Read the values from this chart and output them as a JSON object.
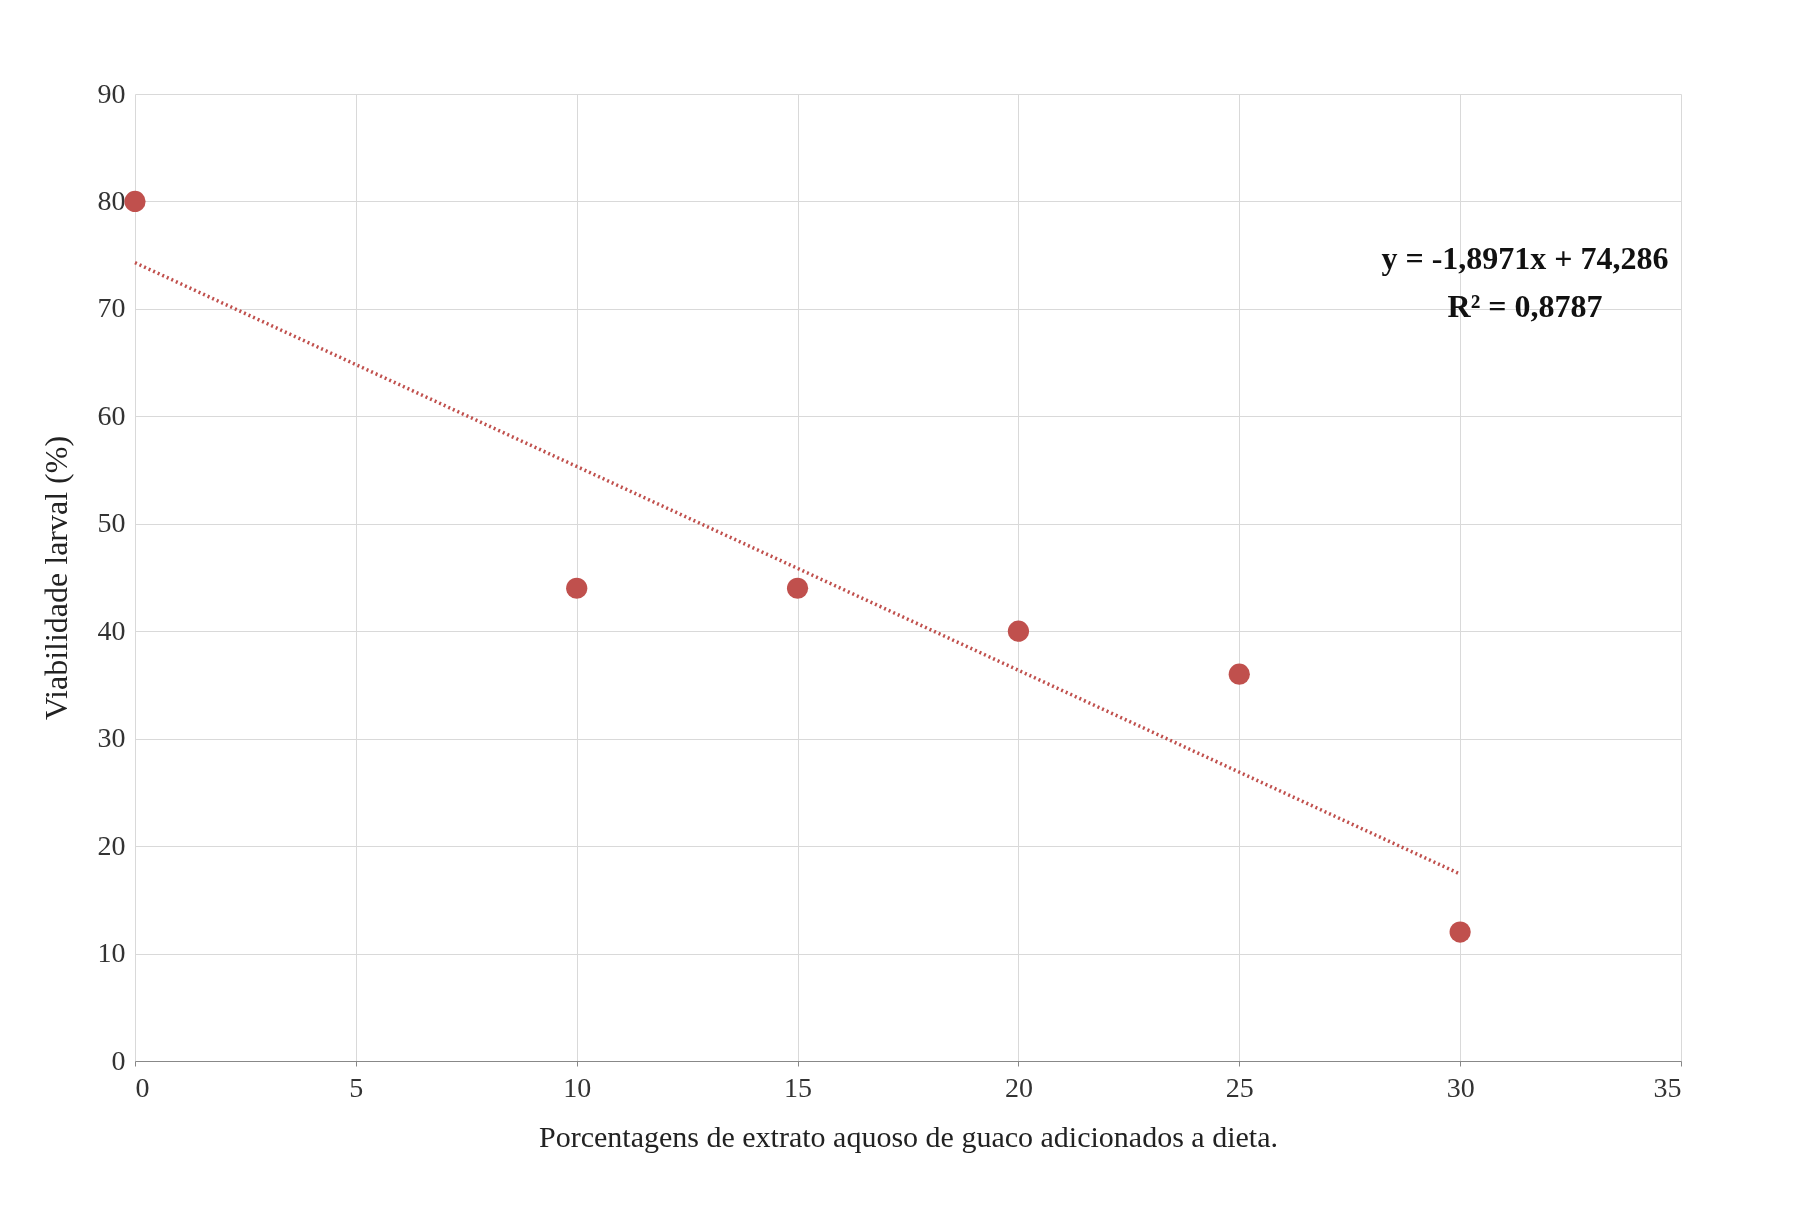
{
  "chart_data": {
    "type": "scatter",
    "xlabel": "Porcentagens de extrato aquoso de guaco adicionados a dieta.",
    "ylabel": "Viabilidade larval (%)",
    "x": [
      0,
      10,
      15,
      20,
      25,
      30
    ],
    "series": [
      {
        "color": "#c0504d",
        "values": [
          80,
          44,
          44,
          40,
          36,
          12
        ],
        "marker": "circle"
      },
      {
        "type": "line",
        "color": "#c0504d",
        "x": [
          0,
          30
        ],
        "values": [
          74.3,
          17.4
        ],
        "line_style": "dotted",
        "marker": "none"
      }
    ],
    "annotations": [
      "y = -1,8971x + 74,286",
      "R² = 0,8787"
    ],
    "xlim": [
      0,
      35
    ],
    "xticks": [
      0,
      5,
      10,
      15,
      20,
      25,
      30,
      35
    ],
    "ylim": [
      0,
      90
    ],
    "yticks": [
      0,
      10,
      20,
      30,
      40,
      50,
      60,
      70,
      80,
      90
    ],
    "grid": true
  }
}
